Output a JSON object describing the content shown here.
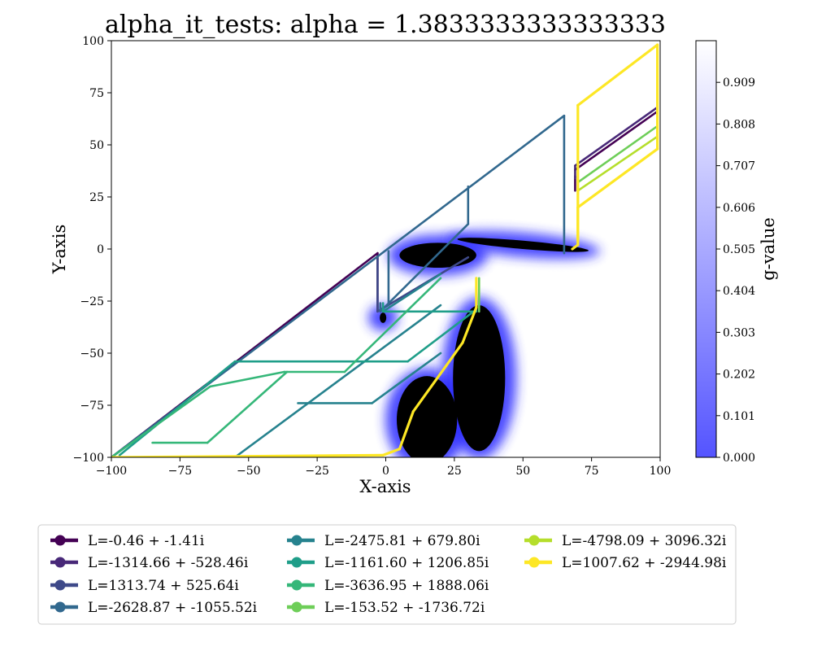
{
  "chart_data": {
    "type": "line",
    "title": "alpha_it_tests: alpha = 1.3833333333333333",
    "xlabel": "X-axis",
    "ylabel": "Y-axis",
    "xlim": [
      -100,
      100
    ],
    "ylim": [
      -100,
      100
    ],
    "xticks": [
      -100,
      -75,
      -50,
      -25,
      0,
      25,
      50,
      75,
      100
    ],
    "yticks": [
      -100,
      -75,
      -50,
      -25,
      0,
      25,
      50,
      75,
      100
    ],
    "grid": false,
    "legend_location": "bottom",
    "colorbar": {
      "label": "g-value",
      "range": [
        0.0,
        1.01
      ],
      "ticks": [
        "0.000",
        "0.101",
        "0.202",
        "0.303",
        "0.404",
        "0.505",
        "0.606",
        "0.707",
        "0.808",
        "0.909"
      ],
      "color_low": "#5454ff",
      "color_high": "#ffffff"
    },
    "g_field": {
      "description_visible": "black regions with blue glow",
      "blobs": [
        {
          "cx": 19,
          "cy": -3,
          "rx": 14,
          "ry": 6,
          "angle": 0
        },
        {
          "cx": 50,
          "cy": 2,
          "rx": 24,
          "ry": 2,
          "angle": -5
        },
        {
          "cx": 15,
          "cy": -82,
          "rx": 11,
          "ry": 21,
          "angle": 0
        },
        {
          "cx": 34,
          "cy": -62,
          "rx": 9.5,
          "ry": 35,
          "angle": 0
        },
        {
          "cx": -1,
          "cy": -33,
          "rx": 1.2,
          "ry": 2.5,
          "angle": 0
        }
      ]
    },
    "series": [
      {
        "name": "L=-0.46 + -1.41i",
        "color": "#440154",
        "paths": [
          [
            [
              -100,
              -100
            ],
            [
              -3,
              -2
            ]
          ],
          [
            [
              -3,
              -2
            ],
            [
              -3,
              -30
            ]
          ],
          [
            [
              69,
              35
            ],
            [
              69,
              28
            ]
          ],
          [
            [
              69,
              38
            ],
            [
              99,
              66
            ]
          ]
        ]
      },
      {
        "name": "L=-1314.66 + -528.46i",
        "color": "#482878",
        "paths": [
          [
            [
              69,
              40
            ],
            [
              99,
              68
            ]
          ],
          [
            [
              69,
              40
            ],
            [
              69,
              34
            ]
          ]
        ]
      },
      {
        "name": "L=1313.74 + 525.64i",
        "color": "#3e4989",
        "paths": [
          [
            [
              -3,
              -30
            ],
            [
              -3,
              -4
            ]
          ],
          [
            [
              -3,
              -30
            ],
            [
              30,
              -4
            ]
          ]
        ]
      },
      {
        "name": "L=-2628.87 + -1055.52i",
        "color": "#31688e",
        "paths": [
          [
            [
              -100,
              -100
            ],
            [
              65,
              64
            ]
          ],
          [
            [
              65,
              64
            ],
            [
              65,
              -2
            ]
          ],
          [
            [
              30,
              30
            ],
            [
              30,
              12
            ]
          ],
          [
            [
              30,
              12
            ],
            [
              -2,
              -30
            ]
          ],
          [
            [
              -2,
              -30
            ],
            [
              -2,
              -26
            ]
          ],
          [
            [
              1,
              -27
            ],
            [
              1,
              -1
            ]
          ]
        ]
      },
      {
        "name": "L=-2475.81 + 679.80i",
        "color": "#26828e",
        "paths": [
          [
            [
              -55,
              -100
            ],
            [
              20,
              -27
            ]
          ],
          [
            [
              -32,
              -74
            ],
            [
              -5,
              -74
            ]
          ],
          [
            [
              -5,
              -74
            ],
            [
              20,
              -50
            ]
          ],
          [
            [
              -1,
              -30
            ],
            [
              20,
              -12
            ]
          ]
        ]
      },
      {
        "name": "L=-1161.60 + 1206.85i",
        "color": "#1f9e89",
        "paths": [
          [
            [
              -97,
              -99
            ],
            [
              -55,
              -54
            ]
          ],
          [
            [
              -55,
              -54
            ],
            [
              8,
              -54
            ]
          ],
          [
            [
              8,
              -54
            ],
            [
              32,
              -30
            ]
          ],
          [
            [
              -1,
              -30
            ],
            [
              33,
              -30
            ]
          ],
          [
            [
              33,
              -30
            ],
            [
              33,
              -14
            ]
          ],
          [
            [
              -1,
              -30
            ],
            [
              -1,
              -26
            ]
          ]
        ]
      },
      {
        "name": "L=-3636.95 + 1888.06i",
        "color": "#35b779",
        "paths": [
          [
            [
              -100,
              -100
            ],
            [
              -64,
              -66
            ]
          ],
          [
            [
              -64,
              -66
            ],
            [
              -37,
              -59
            ]
          ],
          [
            [
              -37,
              -59
            ],
            [
              -15,
              -59
            ]
          ],
          [
            [
              -15,
              -59
            ],
            [
              20,
              -14
            ]
          ],
          [
            [
              -65,
              -93
            ],
            [
              -85,
              -93
            ]
          ],
          [
            [
              -65,
              -93
            ],
            [
              -36,
              -59
            ]
          ]
        ]
      },
      {
        "name": "L=-153.52 + -1736.72i",
        "color": "#6ece58",
        "paths": [
          [
            [
              99,
              59
            ],
            [
              70,
              32
            ]
          ],
          [
            [
              70,
              32
            ],
            [
              70,
              26
            ]
          ],
          [
            [
              34,
              -30
            ],
            [
              34,
              -14
            ]
          ]
        ]
      },
      {
        "name": "L=-4798.09 + 3096.32i",
        "color": "#b5de2b",
        "paths": [
          [
            [
              99,
              54
            ],
            [
              70,
              28
            ]
          ],
          [
            [
              70,
              28
            ],
            [
              70,
              22
            ]
          ]
        ]
      },
      {
        "name": "L=1007.62 + -2944.98i",
        "color": "#fde725",
        "paths": [
          [
            [
              -100,
              -100
            ],
            [
              -1,
              -99
            ]
          ],
          [
            [
              -1,
              -99
            ],
            [
              5,
              -96
            ]
          ],
          [
            [
              5,
              -96
            ],
            [
              10,
              -78
            ]
          ],
          [
            [
              10,
              -78
            ],
            [
              22,
              -56
            ]
          ],
          [
            [
              22,
              -56
            ],
            [
              28,
              -45
            ]
          ],
          [
            [
              28,
              -45
            ],
            [
              33,
              -28
            ]
          ],
          [
            [
              33,
              -28
            ],
            [
              33,
              -14
            ]
          ],
          [
            [
              68,
              0
            ],
            [
              70,
              2
            ]
          ],
          [
            [
              70,
              2
            ],
            [
              70,
              69
            ]
          ],
          [
            [
              70,
              69
            ],
            [
              99,
              98
            ]
          ],
          [
            [
              99,
              98
            ],
            [
              99,
              48
            ]
          ],
          [
            [
              99,
              48
            ],
            [
              70,
              20
            ]
          ],
          [
            [
              70,
              20
            ],
            [
              70,
              4
            ]
          ]
        ]
      }
    ]
  }
}
